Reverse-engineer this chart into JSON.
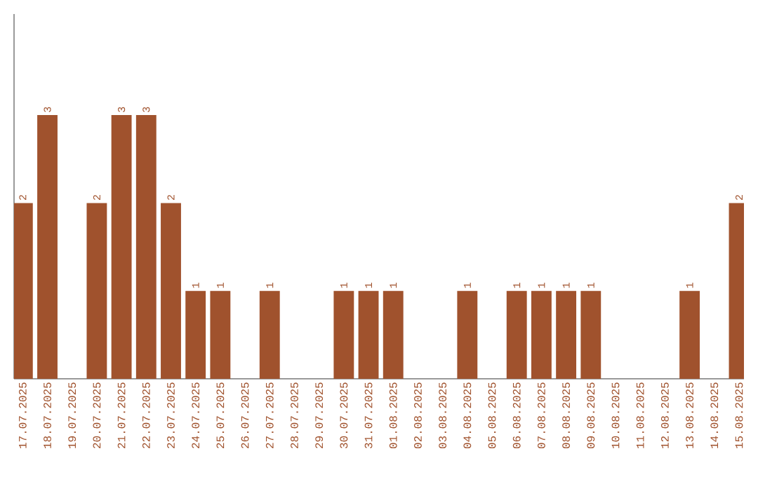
{
  "chart_data": {
    "type": "bar",
    "categories": [
      "17.07.2025",
      "18.07.2025",
      "19.07.2025",
      "20.07.2025",
      "21.07.2025",
      "22.07.2025",
      "23.07.2025",
      "24.07.2025",
      "25.07.2025",
      "26.07.2025",
      "27.07.2025",
      "28.07.2025",
      "29.07.2025",
      "30.07.2025",
      "31.07.2025",
      "01.08.2025",
      "02.08.2025",
      "03.08.2025",
      "04.08.2025",
      "05.08.2025",
      "06.08.2025",
      "07.08.2025",
      "08.08.2025",
      "09.08.2025",
      "10.08.2025",
      "11.08.2025",
      "12.08.2025",
      "13.08.2025",
      "14.08.2025",
      "15.08.2025"
    ],
    "values": [
      2,
      3,
      0,
      2,
      3,
      3,
      2,
      1,
      1,
      0,
      1,
      0,
      0,
      1,
      1,
      1,
      0,
      0,
      1,
      0,
      1,
      1,
      1,
      1,
      0,
      0,
      0,
      1,
      0,
      2
    ],
    "value_labels": [
      "2",
      "3",
      null,
      "2",
      "3",
      "3",
      "2",
      "1",
      "1",
      null,
      "1",
      null,
      null,
      "1",
      "1",
      "1",
      null,
      null,
      "1",
      null,
      "1",
      "1",
      "1",
      "1",
      null,
      null,
      null,
      "1",
      null,
      "2"
    ],
    "color": "#a0522d",
    "ylim": [
      0,
      4.15
    ]
  }
}
